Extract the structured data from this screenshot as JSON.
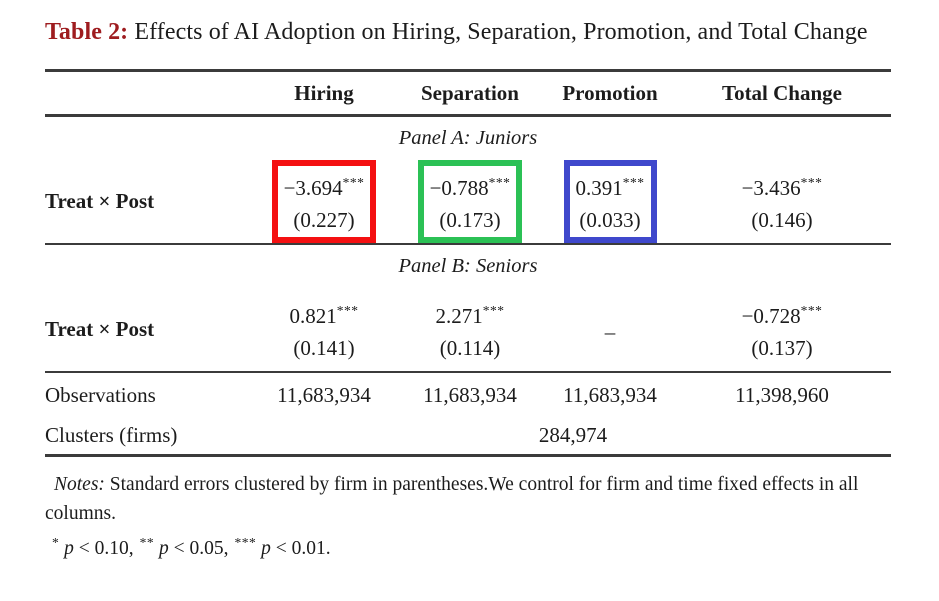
{
  "title": {
    "label": "Table 2:",
    "text": " Effects of AI Adoption on Hiring, Separation, Promotion, and Total Change"
  },
  "colors": {
    "caption_label": "#9e1c1f",
    "rule": "#3b3b3b",
    "box_red": "#f41011",
    "box_green": "#2bc155",
    "box_blue": "#3f48cc"
  },
  "table": {
    "columns": [
      "Hiring",
      "Separation",
      "Promotion",
      "Total Change"
    ],
    "panels": [
      {
        "label": "Panel A: Juniors",
        "row_label": "Treat × Post",
        "cells": [
          {
            "value": "−3.694",
            "stars": "***",
            "se": "(0.227)",
            "box_color": "#f41011"
          },
          {
            "value": "−0.788",
            "stars": "***",
            "se": "(0.173)",
            "box_color": "#2bc155"
          },
          {
            "value": "0.391",
            "stars": "***",
            "se": "(0.033)",
            "box_color": "#3f48cc"
          },
          {
            "value": "−3.436",
            "stars": "***",
            "se": "(0.146)"
          }
        ]
      },
      {
        "label": "Panel B: Seniors",
        "row_label": "Treat × Post",
        "cells": [
          {
            "value": "0.821",
            "stars": "***",
            "se": "(0.141)"
          },
          {
            "value": "2.271",
            "stars": "***",
            "se": "(0.114)"
          },
          {
            "value": "–",
            "stars": "",
            "se": ""
          },
          {
            "value": "−0.728",
            "stars": "***",
            "se": "(0.137)"
          }
        ]
      }
    ],
    "observations": {
      "label": "Observations",
      "values": [
        "11,683,934",
        "11,683,934",
        "11,683,934",
        "11,398,960"
      ]
    },
    "clusters": {
      "label": "Clusters (firms)",
      "value": "284,974"
    }
  },
  "notes": {
    "label": "Notes:",
    "text": " Standard errors clustered by firm in parentheses.We control for firm and time fixed effects in all columns.",
    "significance": [
      {
        "stars": "*",
        "var": "p",
        "rest": " < 0.10,"
      },
      {
        "stars": "**",
        "var": "p",
        "rest": " < 0.05,"
      },
      {
        "stars": "***",
        "var": "p",
        "rest": " < 0.01."
      }
    ]
  }
}
